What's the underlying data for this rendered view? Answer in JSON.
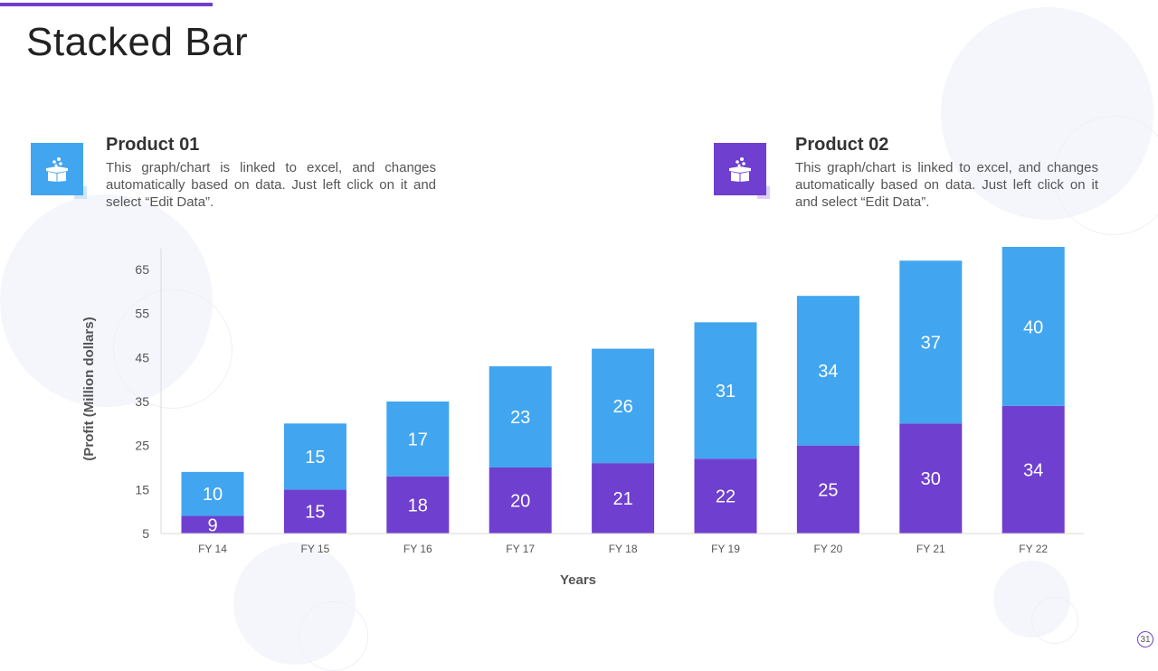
{
  "title": "Stacked Bar",
  "colors": {
    "accent": "#6f3fcf",
    "product01": "#42a5ef",
    "product02": "#6f3fcf"
  },
  "cards": [
    {
      "title": "Product 01",
      "text": "This graph/chart is linked to excel, and changes automatically based on data. Just left click on it and select “Edit Data”.",
      "icon": "gift-box-icon",
      "color": "#42a5ef"
    },
    {
      "title": "Product 02",
      "text": "This graph/chart is linked to excel, and changes automatically based on data. Just left click on it and select “Edit Data”.",
      "icon": "gift-box-icon",
      "color": "#6f3fcf"
    }
  ],
  "page_number": "31",
  "chart_data": {
    "type": "bar",
    "stacked": true,
    "categories": [
      "FY 14",
      "FY 15",
      "FY 16",
      "FY 17",
      "FY 18",
      "FY 19",
      "FY 20",
      "FY 21",
      "FY 22"
    ],
    "series": [
      {
        "values": [
          9,
          15,
          18,
          20,
          21,
          22,
          25,
          30,
          34
        ],
        "color": "#6f3fcf"
      },
      {
        "values": [
          10,
          15,
          17,
          23,
          26,
          31,
          34,
          37,
          40
        ],
        "color": "#42a5ef"
      }
    ],
    "xlabel": "Years",
    "ylabel": "(Profit  (Million dollars)",
    "ylim": [
      5,
      70
    ],
    "yticks": [
      5,
      15,
      25,
      35,
      45,
      55,
      65
    ],
    "grid": false,
    "data_labels": true
  }
}
